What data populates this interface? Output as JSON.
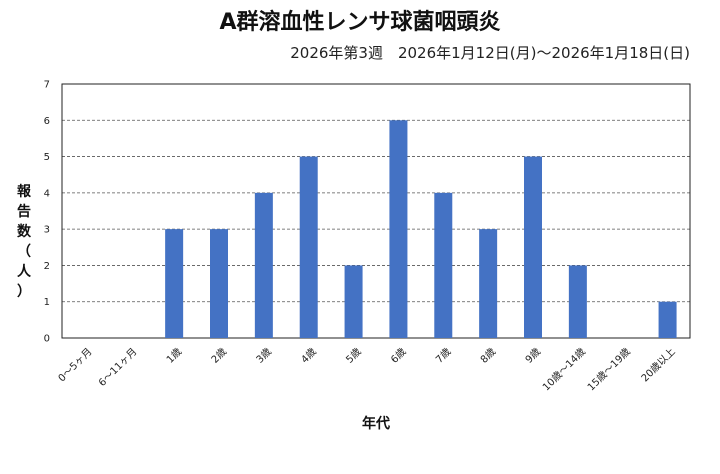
{
  "chart_data": {
    "type": "bar",
    "title": "A群溶血性レンサ球菌咽頭炎",
    "subtitle": "2026年第3週　2026年1月12日(月)～2026年1月18日(日)",
    "xlabel": "年代",
    "ylabel_chars": [
      "報",
      "告",
      "数",
      "（",
      "人",
      "）"
    ],
    "categories": [
      "0～5ヶ月",
      "6～11ヶ月",
      "1歳",
      "2歳",
      "3歳",
      "4歳",
      "5歳",
      "6歳",
      "7歳",
      "8歳",
      "9歳",
      "10歳～14歳",
      "15歳～19歳",
      "20歳以上"
    ],
    "values": [
      0,
      0,
      3,
      3,
      4,
      5,
      2,
      6,
      4,
      3,
      5,
      2,
      0,
      1
    ],
    "ylim": [
      0,
      7
    ],
    "yticks": [
      0,
      1,
      2,
      3,
      4,
      5,
      6,
      7
    ],
    "grid": true,
    "bar_color": "#4472c4"
  }
}
